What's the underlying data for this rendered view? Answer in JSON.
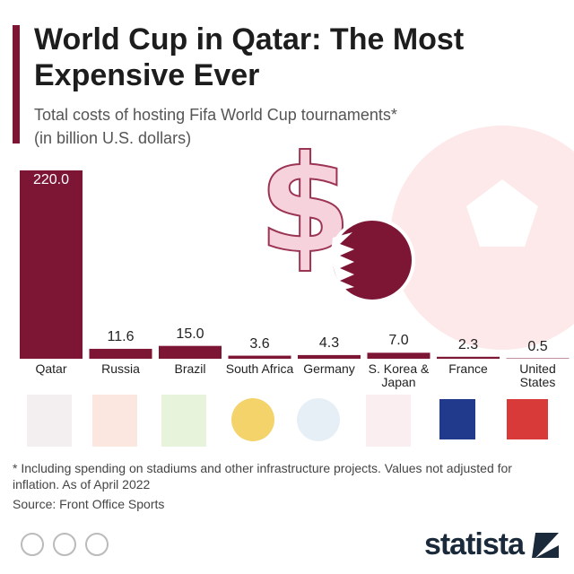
{
  "chart_data": {
    "type": "bar",
    "title": "World Cup in Qatar: The Most Expensive Ever",
    "subtitle": "Total costs of hosting Fifa World Cup tournaments*",
    "unit": "(in billion U.S. dollars)",
    "categories": [
      "Qatar",
      "Russia",
      "Brazil",
      "South Africa",
      "Germany",
      "S. Korea & Japan",
      "France",
      "United States"
    ],
    "values": [
      220.0,
      11.6,
      15.0,
      3.6,
      4.3,
      7.0,
      2.3,
      0.5
    ],
    "value_labels": [
      "220.0",
      "11.6",
      "15.0",
      "3.6",
      "4.3",
      "7.0",
      "2.3",
      "0.5"
    ],
    "color": "#7d1535",
    "footnote": "* Including spending on stadiums and other infrastructure projects. Values not adjusted for inflation. As of April 2022",
    "source": "Source: Front Office Sports",
    "brand": "statista"
  }
}
